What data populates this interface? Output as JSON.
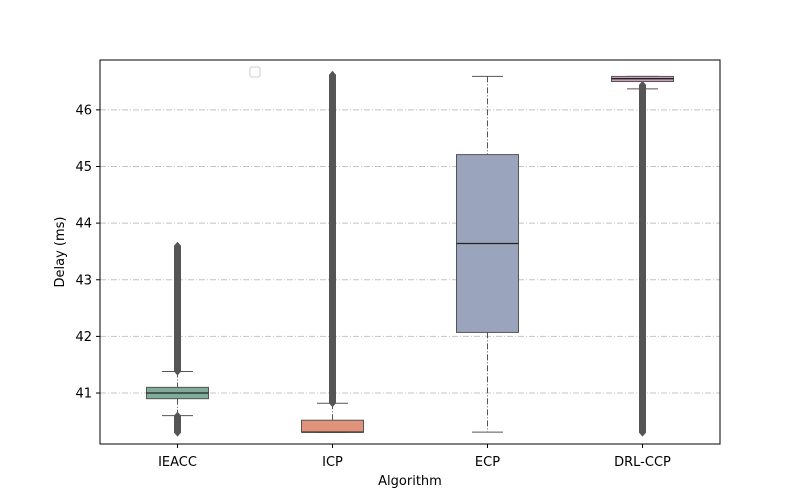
{
  "chart_data": {
    "type": "box",
    "title": "",
    "xlabel": "Algorithm",
    "ylabel": "Delay (ms)",
    "categories": [
      "IEACC",
      "ICP",
      "ECP",
      "DRL-CCP"
    ],
    "ylim": [
      40.1,
      46.88
    ],
    "yticks": [
      "41",
      "42",
      "43",
      "44",
      "45",
      "46"
    ],
    "grid": "horizontal dash-dot",
    "legend": "empty legend box near top-left",
    "boxes": [
      {
        "name": "IEACC",
        "q1": 40.9,
        "median": 41.0,
        "q3": 41.1,
        "whisker_low": 40.6,
        "whisker_high": 41.38,
        "outliers_low": [
          40.3,
          40.6
        ],
        "outliers_high": [
          41.38,
          43.6
        ],
        "color": "#7fac9b"
      },
      {
        "name": "ICP",
        "q1": 40.31,
        "median": 40.31,
        "q3": 40.52,
        "whisker_low": 40.31,
        "whisker_high": 40.82,
        "outliers_low": [],
        "outliers_high": [
          40.82,
          46.62
        ],
        "color": "#e0927b"
      },
      {
        "name": "ECP",
        "q1": 42.07,
        "median": 43.64,
        "q3": 45.21,
        "whisker_low": 40.31,
        "whisker_high": 46.59,
        "outliers_low": [],
        "outliers_high": [],
        "color": "#9ba4bd"
      },
      {
        "name": "DRL-CCP",
        "q1": 46.5,
        "median": 46.55,
        "q3": 46.59,
        "whisker_low": 46.37,
        "whisker_high": 46.59,
        "outliers_low": [
          40.3,
          46.44
        ],
        "outliers_high": [],
        "color": "#c89dba"
      }
    ]
  }
}
